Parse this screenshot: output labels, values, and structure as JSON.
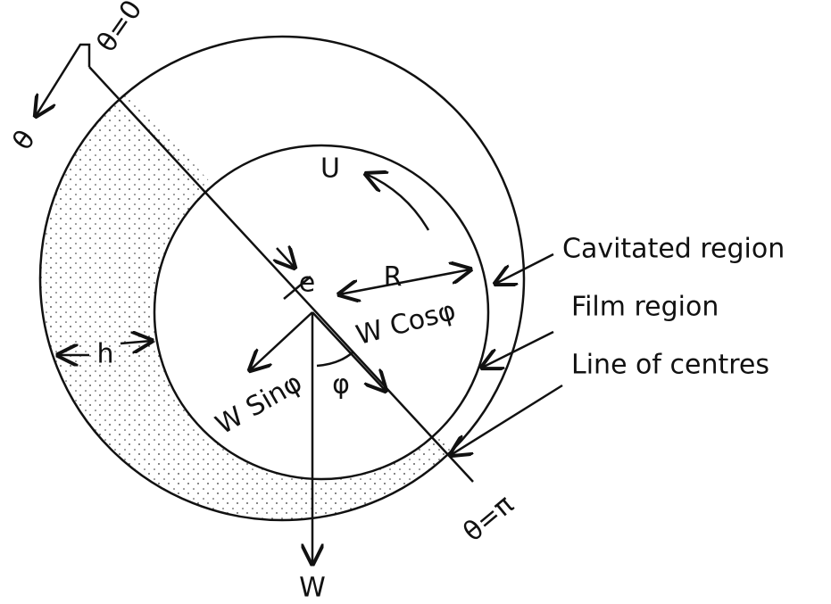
{
  "labels": {
    "theta_zero": "θ=0",
    "theta": "θ",
    "U": "U",
    "e": "e",
    "R": "R",
    "cavitated": "Cavitated region",
    "film": "Film region",
    "line_of_centres": "Line of centres",
    "h": "h",
    "w_cos": "W Cosφ",
    "w_sin": "W Sinφ",
    "phi": "φ",
    "theta_pi": "θ=π",
    "W": "W"
  }
}
